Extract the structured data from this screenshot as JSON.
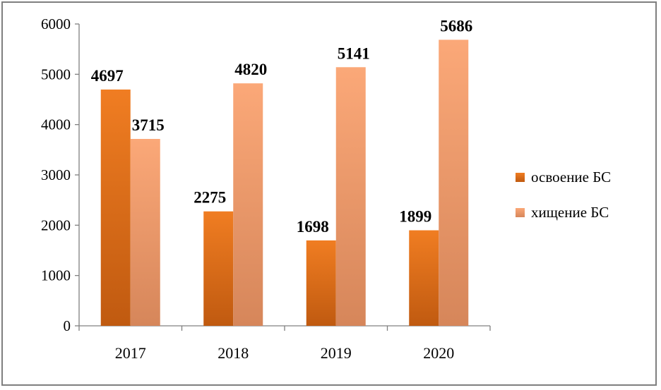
{
  "chart_data": {
    "type": "bar",
    "title": "",
    "xlabel": "",
    "ylabel": "",
    "categories": [
      "2017",
      "2018",
      "2019",
      "2020"
    ],
    "ylim": [
      0,
      6000
    ],
    "yticks": [
      "0",
      "1000",
      "2000",
      "3000",
      "4000",
      "5000",
      "6000"
    ],
    "grid": false,
    "legend_position": "right",
    "series": [
      {
        "name": "освоение БС",
        "values": [
          4697,
          2275,
          1698,
          1899
        ],
        "color": "#e46c0a"
      },
      {
        "name": "хищение БС",
        "values": [
          3715,
          4820,
          5141,
          5686
        ],
        "color": "#f9a46e"
      }
    ]
  }
}
